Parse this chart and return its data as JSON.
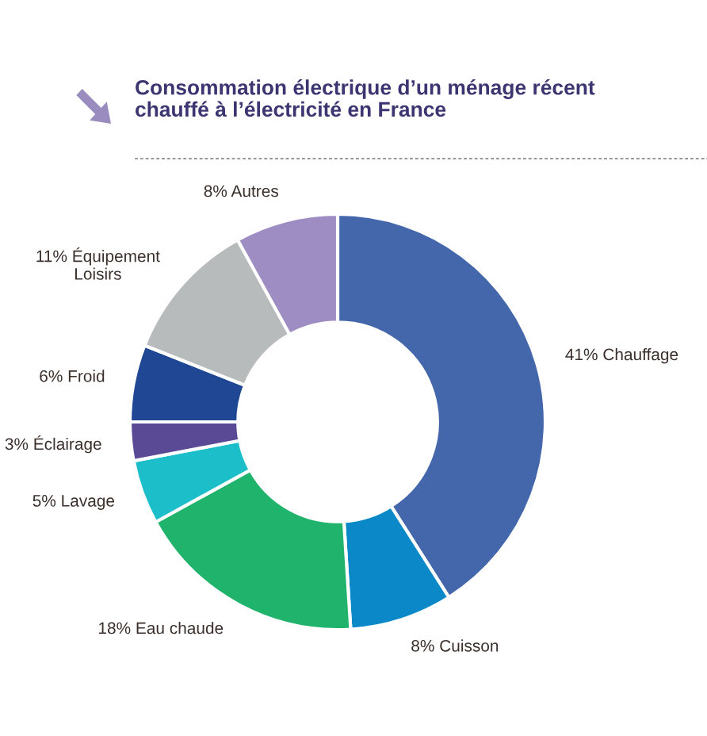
{
  "chart_data": {
    "type": "donut",
    "title": "Consommation électrique d’un ménage récent\nchauffé à l’électricité en France",
    "categories": [
      "41% Chauffage",
      "8% Cuisson",
      "18% Eau chaude",
      "5% Lavage",
      "3% Éclairage",
      "6% Froid",
      "11% Équipement\nLoisirs",
      "8% Autres"
    ],
    "values": [
      41,
      8,
      18,
      5,
      3,
      6,
      11,
      8
    ],
    "colors": [
      "#4467ab",
      "#0a88c8",
      "#1fb36c",
      "#1cbfc9",
      "#5a4a96",
      "#1f4793",
      "#b7bbbc",
      "#9e8dc2"
    ],
    "legend": false
  }
}
